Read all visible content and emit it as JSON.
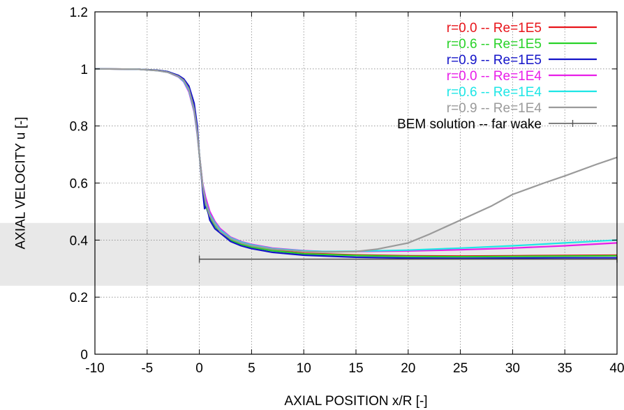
{
  "chart_data": {
    "type": "line",
    "xlabel": "AXIAL POSITION x/R [-]",
    "ylabel": "AXIAL VELOCITY u [-]",
    "xlim": [
      -10,
      40
    ],
    "ylim": [
      0,
      1.2
    ],
    "xticks": [
      -10,
      -5,
      0,
      5,
      10,
      15,
      20,
      25,
      30,
      35,
      40
    ],
    "yticks": [
      0,
      0.2,
      0.4,
      0.6,
      0.8,
      1,
      1.2
    ],
    "xtick_labels": [
      "-10",
      "-5",
      "0",
      "5",
      "10",
      "15",
      "20",
      "25",
      "30",
      "35",
      "40"
    ],
    "ytick_labels": [
      "0",
      "0.2",
      "0.4",
      "0.6",
      "0.8",
      "1",
      "1.2"
    ],
    "grid": true,
    "legend_position": "top-right",
    "highlight_band": {
      "y": [
        0.24,
        0.46
      ],
      "color": "#e0e0e0"
    },
    "series": [
      {
        "name": "r=0.0 -- Re=1E5",
        "color": "#e8141a",
        "x": [
          -10,
          -6,
          -4,
          -3,
          -2,
          -1.5,
          -1,
          -0.5,
          -0.2,
          0,
          0.3,
          0.6,
          1,
          1.5,
          2,
          3,
          4,
          5,
          7,
          10,
          15,
          20,
          25,
          30,
          35,
          40
        ],
        "y": [
          1.0,
          0.999,
          0.995,
          0.99,
          0.975,
          0.96,
          0.93,
          0.86,
          0.78,
          0.7,
          0.6,
          0.54,
          0.49,
          0.46,
          0.43,
          0.405,
          0.39,
          0.378,
          0.365,
          0.354,
          0.348,
          0.345,
          0.344,
          0.345,
          0.346,
          0.347
        ]
      },
      {
        "name": "r=0.6 -- Re=1E5",
        "color": "#28d228",
        "x": [
          -10,
          -6,
          -4,
          -3,
          -2,
          -1.5,
          -1,
          -0.5,
          -0.2,
          0,
          0.3,
          0.6,
          1,
          1.5,
          2,
          3,
          4,
          5,
          7,
          10,
          15,
          20,
          25,
          30,
          35,
          40
        ],
        "y": [
          1.0,
          0.999,
          0.995,
          0.99,
          0.976,
          0.962,
          0.935,
          0.87,
          0.79,
          0.7,
          0.59,
          0.52,
          0.48,
          0.45,
          0.425,
          0.4,
          0.385,
          0.375,
          0.363,
          0.352,
          0.346,
          0.343,
          0.342,
          0.343,
          0.344,
          0.345
        ]
      },
      {
        "name": "r=0.9 -- Re=1E5",
        "color": "#1414c8",
        "x": [
          -10,
          -6,
          -4,
          -3,
          -2,
          -1.5,
          -1,
          -0.5,
          -0.2,
          0,
          0.3,
          0.5,
          0.7,
          1,
          1.5,
          2,
          3,
          4,
          5,
          7,
          10,
          15,
          20,
          25,
          30,
          35,
          40
        ],
        "y": [
          1.0,
          0.999,
          0.995,
          0.99,
          0.977,
          0.965,
          0.94,
          0.88,
          0.8,
          0.7,
          0.58,
          0.51,
          0.52,
          0.47,
          0.44,
          0.425,
          0.395,
          0.38,
          0.37,
          0.357,
          0.347,
          0.34,
          0.337,
          0.336,
          0.337,
          0.338,
          0.338
        ]
      },
      {
        "name": "r=0.0 -- Re=1E4",
        "color": "#e81ee8",
        "x": [
          -10,
          -6,
          -4,
          -3,
          -2,
          -1.5,
          -1,
          -0.5,
          -0.2,
          0,
          0.3,
          0.6,
          1,
          1.5,
          2,
          3,
          4,
          5,
          7,
          10,
          12,
          15,
          20,
          25,
          30,
          35,
          40
        ],
        "y": [
          1.0,
          0.999,
          0.994,
          0.988,
          0.972,
          0.955,
          0.92,
          0.85,
          0.77,
          0.7,
          0.6,
          0.55,
          0.5,
          0.465,
          0.44,
          0.41,
          0.395,
          0.385,
          0.372,
          0.363,
          0.36,
          0.36,
          0.362,
          0.366,
          0.372,
          0.38,
          0.39
        ]
      },
      {
        "name": "r=0.6 -- Re=1E4",
        "color": "#1ee6e6",
        "x": [
          -10,
          -6,
          -4,
          -3,
          -2,
          -1.5,
          -1,
          -0.5,
          -0.2,
          0,
          0.3,
          0.6,
          1,
          1.5,
          2,
          3,
          4,
          5,
          7,
          10,
          12,
          15,
          20,
          25,
          30,
          35,
          40
        ],
        "y": [
          1.0,
          0.999,
          0.994,
          0.988,
          0.973,
          0.957,
          0.925,
          0.855,
          0.775,
          0.7,
          0.595,
          0.535,
          0.49,
          0.46,
          0.435,
          0.408,
          0.393,
          0.383,
          0.37,
          0.362,
          0.36,
          0.361,
          0.365,
          0.372,
          0.38,
          0.39,
          0.4
        ]
      },
      {
        "name": "r=0.9 -- Re=1E4",
        "color": "#9a9a9a",
        "x": [
          -10,
          -6,
          -4,
          -3,
          -2,
          -1.5,
          -1,
          -0.5,
          -0.2,
          0,
          0.3,
          0.6,
          1,
          1.5,
          2,
          3,
          4,
          5,
          7,
          10,
          12,
          15,
          17,
          20,
          22,
          25,
          28,
          30,
          33,
          35,
          38,
          40
        ],
        "y": [
          1.0,
          0.999,
          0.994,
          0.988,
          0.974,
          0.96,
          0.93,
          0.86,
          0.78,
          0.7,
          0.59,
          0.53,
          0.485,
          0.455,
          0.43,
          0.405,
          0.39,
          0.38,
          0.368,
          0.36,
          0.358,
          0.36,
          0.368,
          0.39,
          0.42,
          0.47,
          0.52,
          0.56,
          0.6,
          0.625,
          0.665,
          0.69
        ]
      },
      {
        "name": "BEM solution -- far wake",
        "color": "#555555",
        "marker": "+",
        "x": [
          0,
          40
        ],
        "y": [
          0.333,
          0.333
        ]
      }
    ]
  }
}
